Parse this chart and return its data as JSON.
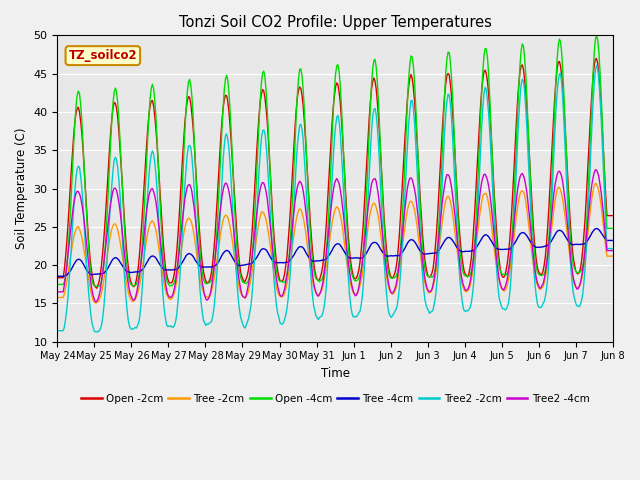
{
  "title": "Tonzi Soil CO2 Profile: Upper Temperatures",
  "ylabel": "Soil Temperature (C)",
  "xlabel": "Time",
  "watermark": "TZ_soilco2",
  "ylim": [
    10,
    50
  ],
  "background_color": "#e8e8e8",
  "series_names": [
    "Open -2cm",
    "Tree -2cm",
    "Open -4cm",
    "Tree -4cm",
    "Tree2 -2cm",
    "Tree2 -4cm"
  ],
  "series_colors": [
    "#dd0000",
    "#ff9900",
    "#00dd00",
    "#0000cc",
    "#00cccc",
    "#cc00cc"
  ],
  "xtick_labels": [
    "May 24",
    "May 25",
    "May 26",
    "May 27",
    "May 28",
    "May 29",
    "May 30",
    "May 31",
    "Jun 1",
    "Jun 2",
    "Jun 3",
    "Jun 4",
    "Jun 5",
    "Jun 6",
    "Jun 7",
    "Jun 8"
  ],
  "ytick_labels": [
    10,
    15,
    20,
    25,
    30,
    35,
    40,
    45,
    50
  ],
  "n_points": 480,
  "days": 15
}
